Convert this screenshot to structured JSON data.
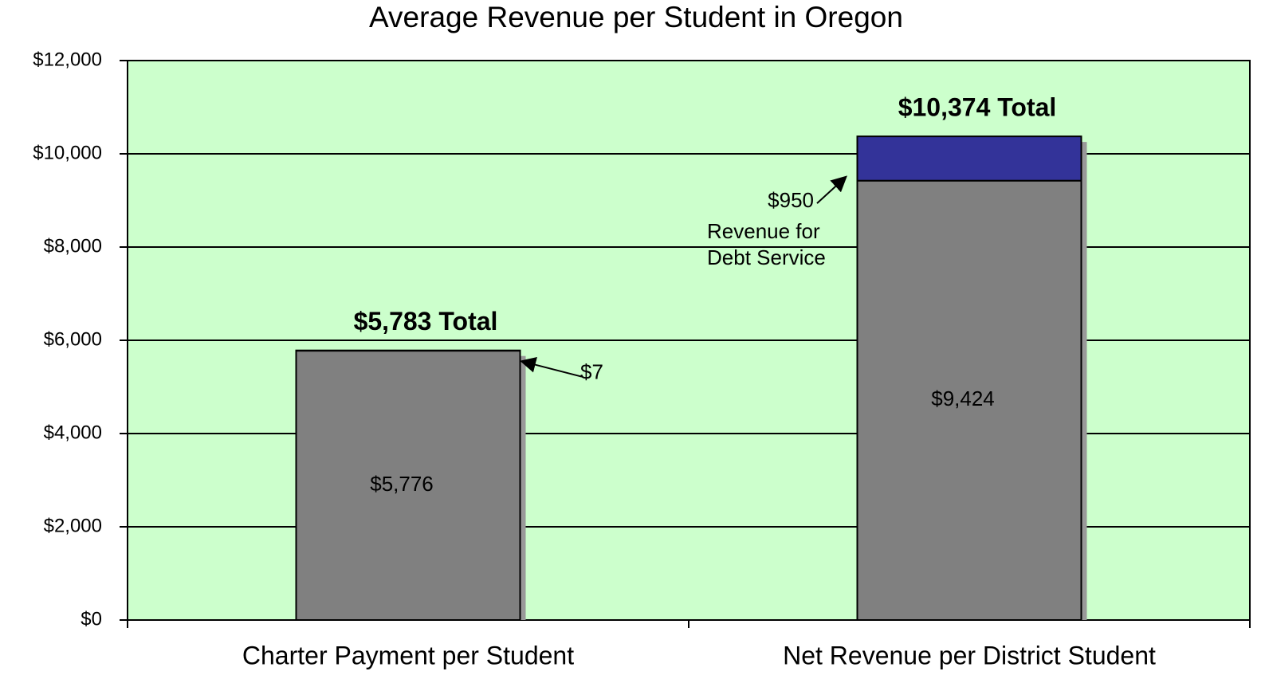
{
  "chart_data": {
    "type": "stacked_bar",
    "title": "Average Revenue per Student in Oregon",
    "categories": [
      "Charter Payment per Student",
      "Net Revenue per District Student"
    ],
    "series": [
      {
        "color": "#808080",
        "values": [
          5776,
          9424
        ],
        "value_labels": [
          "$5,776",
          "$9,424"
        ]
      },
      {
        "color": "#333399",
        "values": [
          7,
          950
        ],
        "value_labels": [
          "$7",
          "$950"
        ]
      }
    ],
    "totals": [
      "$5,783 Total",
      "$10,374 Total"
    ],
    "annotation": [
      "Revenue for",
      "Debt Service"
    ],
    "ylim": [
      0,
      12000
    ],
    "yticks": [
      {
        "value": 0,
        "label": "$0"
      },
      {
        "value": 2000,
        "label": "$2,000"
      },
      {
        "value": 4000,
        "label": "$4,000"
      },
      {
        "value": 6000,
        "label": "$6,000"
      },
      {
        "value": 8000,
        "label": "$8,000"
      },
      {
        "value": 10000,
        "label": "$10,000"
      },
      {
        "value": 12000,
        "label": "$12,000"
      }
    ],
    "grid": true,
    "background": "#ccffcc"
  }
}
